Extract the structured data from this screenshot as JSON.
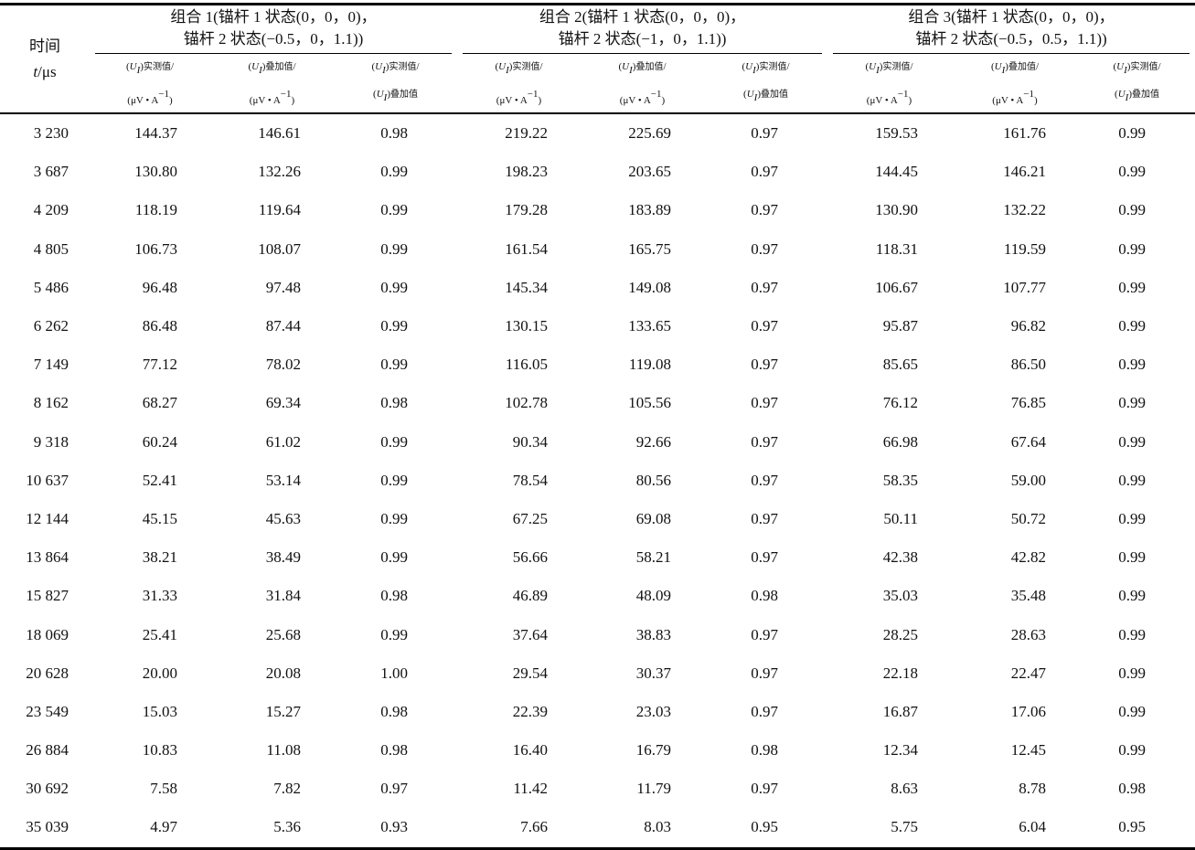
{
  "header": {
    "time": {
      "line1": [
        {
          "t": "时间"
        }
      ],
      "line2": [
        {
          "t": "t",
          "i": true
        },
        {
          "t": "/μs"
        }
      ]
    },
    "groups": [
      {
        "line1": "组合 1(锚杆 1 状态(0，0，0)，",
        "line2": "锚杆 2 状态(−0.5，0，1.1))"
      },
      {
        "line1": "组合 2(锚杆 1 状态(0，0，0)，",
        "line2": "锚杆 2 状态(−1，0，1.1))"
      },
      {
        "line1": "组合 3(锚杆 1 状态(0，0，0)，",
        "line2": "锚杆 2 状态(−0.5，0.5，1.1))"
      }
    ],
    "columns": [
      {
        "line1": [
          {
            "t": "("
          },
          {
            "t": "U",
            "i": true
          },
          {
            "t": "I",
            "sub": true
          },
          {
            "t": ")"
          },
          {
            "t": "实测值",
            "small": true
          },
          {
            "t": "/"
          }
        ],
        "line2": [
          {
            "t": "(μV • A"
          },
          {
            "t": "−1",
            "sup": true
          },
          {
            "t": ")"
          }
        ]
      },
      {
        "line1": [
          {
            "t": "("
          },
          {
            "t": "U",
            "i": true
          },
          {
            "t": "I",
            "sub": true
          },
          {
            "t": ")"
          },
          {
            "t": "叠加值",
            "small": true
          },
          {
            "t": "/"
          }
        ],
        "line2": [
          {
            "t": "(μV • A"
          },
          {
            "t": "−1",
            "sup": true
          },
          {
            "t": ")"
          }
        ]
      },
      {
        "line1": [
          {
            "t": "("
          },
          {
            "t": "U",
            "i": true
          },
          {
            "t": "I",
            "sub": true
          },
          {
            "t": ")"
          },
          {
            "t": "实测值",
            "small": true
          },
          {
            "t": "/"
          }
        ],
        "line2": [
          {
            "t": "("
          },
          {
            "t": "U",
            "i": true
          },
          {
            "t": "I",
            "sub": true
          },
          {
            "t": ")"
          },
          {
            "t": "叠加值",
            "small": true
          }
        ]
      }
    ]
  },
  "table": {
    "rows": [
      [
        "3 230",
        "144.37",
        "146.61",
        "0.98",
        "219.22",
        "225.69",
        "0.97",
        "159.53",
        "161.76",
        "0.99"
      ],
      [
        "3 687",
        "130.80",
        "132.26",
        "0.99",
        "198.23",
        "203.65",
        "0.97",
        "144.45",
        "146.21",
        "0.99"
      ],
      [
        "4 209",
        "118.19",
        "119.64",
        "0.99",
        "179.28",
        "183.89",
        "0.97",
        "130.90",
        "132.22",
        "0.99"
      ],
      [
        "4 805",
        "106.73",
        "108.07",
        "0.99",
        "161.54",
        "165.75",
        "0.97",
        "118.31",
        "119.59",
        "0.99"
      ],
      [
        "5 486",
        "96.48",
        "97.48",
        "0.99",
        "145.34",
        "149.08",
        "0.97",
        "106.67",
        "107.77",
        "0.99"
      ],
      [
        "6 262",
        "86.48",
        "87.44",
        "0.99",
        "130.15",
        "133.65",
        "0.97",
        "95.87",
        "96.82",
        "0.99"
      ],
      [
        "7 149",
        "77.12",
        "78.02",
        "0.99",
        "116.05",
        "119.08",
        "0.97",
        "85.65",
        "86.50",
        "0.99"
      ],
      [
        "8 162",
        "68.27",
        "69.34",
        "0.98",
        "102.78",
        "105.56",
        "0.97",
        "76.12",
        "76.85",
        "0.99"
      ],
      [
        "9 318",
        "60.24",
        "61.02",
        "0.99",
        "90.34",
        "92.66",
        "0.97",
        "66.98",
        "67.64",
        "0.99"
      ],
      [
        "10 637",
        "52.41",
        "53.14",
        "0.99",
        "78.54",
        "80.56",
        "0.97",
        "58.35",
        "59.00",
        "0.99"
      ],
      [
        "12 144",
        "45.15",
        "45.63",
        "0.99",
        "67.25",
        "69.08",
        "0.97",
        "50.11",
        "50.72",
        "0.99"
      ],
      [
        "13 864",
        "38.21",
        "38.49",
        "0.99",
        "56.66",
        "58.21",
        "0.97",
        "42.38",
        "42.82",
        "0.99"
      ],
      [
        "15 827",
        "31.33",
        "31.84",
        "0.98",
        "46.89",
        "48.09",
        "0.98",
        "35.03",
        "35.48",
        "0.99"
      ],
      [
        "18 069",
        "25.41",
        "25.68",
        "0.99",
        "37.64",
        "38.83",
        "0.97",
        "28.25",
        "28.63",
        "0.99"
      ],
      [
        "20 628",
        "20.00",
        "20.08",
        "1.00",
        "29.54",
        "30.37",
        "0.97",
        "22.18",
        "22.47",
        "0.99"
      ],
      [
        "23 549",
        "15.03",
        "15.27",
        "0.98",
        "22.39",
        "23.03",
        "0.97",
        "16.87",
        "17.06",
        "0.99"
      ],
      [
        "26 884",
        "10.83",
        "11.08",
        "0.98",
        "16.40",
        "16.79",
        "0.98",
        "12.34",
        "12.45",
        "0.99"
      ],
      [
        "30 692",
        "7.58",
        "7.82",
        "0.97",
        "11.42",
        "11.79",
        "0.97",
        "8.63",
        "8.78",
        "0.98"
      ],
      [
        "35 039",
        "4.97",
        "5.36",
        "0.93",
        "7.66",
        "8.03",
        "0.95",
        "5.75",
        "6.04",
        "0.95"
      ]
    ]
  }
}
